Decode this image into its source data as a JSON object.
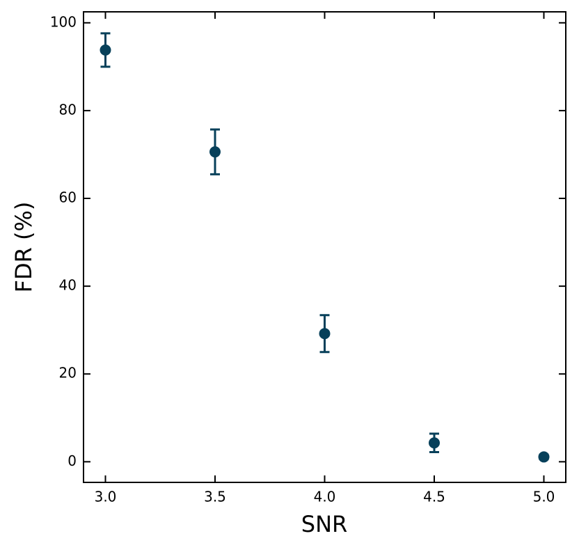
{
  "chart_data": {
    "type": "scatter",
    "x_label": "SNR",
    "y_label": "FDR (%)",
    "x": [
      3.0,
      3.5,
      4.0,
      4.5,
      5.0
    ],
    "y": [
      93.8,
      70.6,
      29.2,
      4.3,
      1.1
    ],
    "yerr": [
      3.8,
      5.1,
      4.2,
      2.1,
      0.5
    ],
    "color": "#07405a",
    "xlim": [
      2.9,
      5.1
    ],
    "ylim": [
      -4.7,
      102.5
    ],
    "xticks": [
      {
        "value": 3,
        "label": "3.0"
      },
      3.5,
      {
        "value": 4,
        "label": "4.0"
      },
      4.5,
      {
        "value": 5,
        "label": "5.0"
      }
    ],
    "yticks": [
      0,
      20,
      40,
      60,
      80,
      100
    ]
  }
}
